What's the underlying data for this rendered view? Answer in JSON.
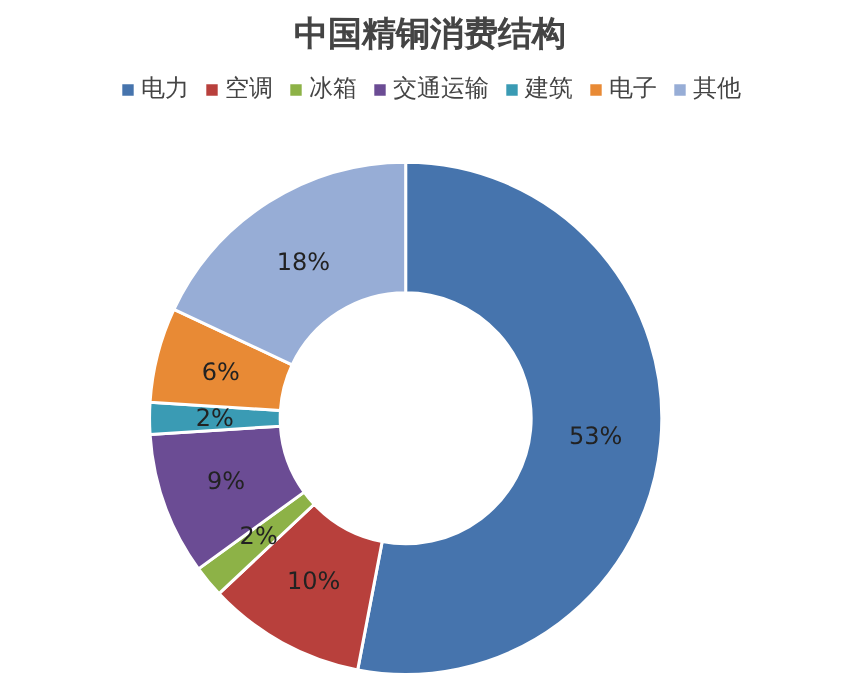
{
  "chart_data": {
    "type": "donut",
    "title": "中国精铜消费结构",
    "categories": [
      "电力",
      "空调",
      "冰箱",
      "交通运输",
      "建筑",
      "电子",
      "其他"
    ],
    "values": [
      53,
      10,
      2,
      9,
      2,
      6,
      18
    ],
    "colors": [
      "#4674ad",
      "#b8403c",
      "#8db247",
      "#6b4c94",
      "#3a9bb4",
      "#e88a35",
      "#97add6"
    ],
    "value_labels": [
      "53%",
      "10%",
      "2%",
      "9%",
      "2%",
      "6%",
      "18%"
    ],
    "legend": "top"
  }
}
